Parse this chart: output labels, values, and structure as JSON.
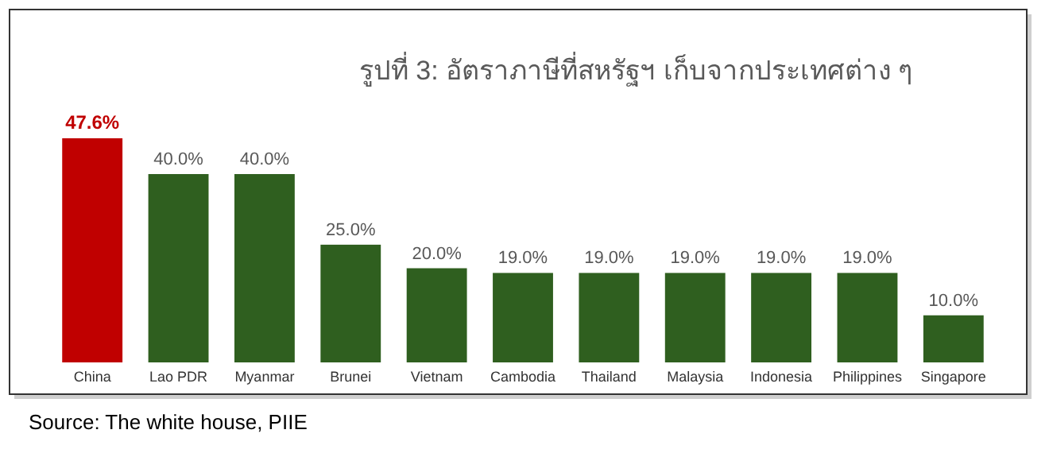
{
  "chart_data": {
    "type": "bar",
    "title": "รูปที่ 3: อัตราภาษีที่สหรัฐฯ เก็บจากประเทศต่าง ๆ",
    "categories": [
      "China",
      "Lao PDR",
      "Myanmar",
      "Brunei",
      "Vietnam",
      "Cambodia",
      "Thailand",
      "Malaysia",
      "Indonesia",
      "Philippines",
      "Singapore"
    ],
    "values": [
      47.6,
      40.0,
      40.0,
      25.0,
      20.0,
      19.0,
      19.0,
      19.0,
      19.0,
      19.0,
      10.0
    ],
    "colors": [
      "#c00000",
      "#2f5f1f",
      "#2f5f1f",
      "#2f5f1f",
      "#2f5f1f",
      "#2f5f1f",
      "#2f5f1f",
      "#2f5f1f",
      "#2f5f1f",
      "#2f5f1f",
      "#2f5f1f"
    ],
    "value_labels": [
      "47.6%",
      "40.0%",
      "40.0%",
      "25.0%",
      "20.0%",
      "19.0%",
      "19.0%",
      "19.0%",
      "19.0%",
      "19.0%",
      "10.0%"
    ],
    "annotations": [
      "Source: The white house, PIIE"
    ]
  }
}
